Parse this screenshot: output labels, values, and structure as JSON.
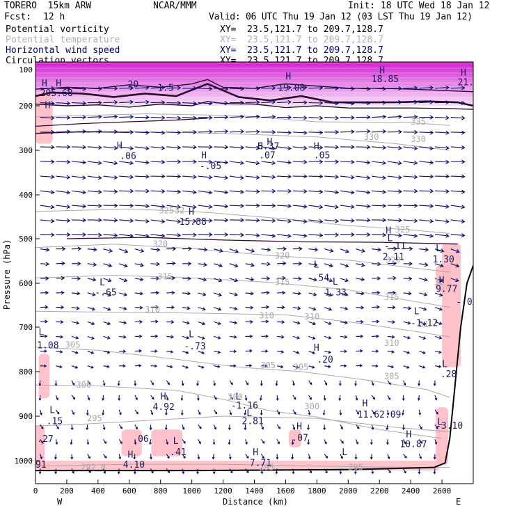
{
  "header": {
    "model": "TORERO  15km ARW",
    "center": "NCAR/MMM",
    "init": "Init: 18 UTC Wed 18 Jan 12",
    "fcst_label": "Fcst:",
    "fcst_value": "12 h",
    "valid": "Valid: 06 UTC Thu 19 Jan 12 (03 LST Thu 19 Jan 12)"
  },
  "fields": [
    {
      "name": "Potential vorticity",
      "xy": "XY=  23.5,121.7 to 209.7,128.7",
      "color": "#000000"
    },
    {
      "name": "Potential temperature",
      "xy": "XY=  23.5,121.7 to 209.7,128.7",
      "color": "#b0b0b0"
    },
    {
      "name": "Horizontal wind speed",
      "xy": "XY=  23.5,121.7 to 209.7,128.7",
      "color": "#000080"
    },
    {
      "name": "Circulation vectors",
      "xy": "XY=  23.5,121.7 to 209.7,128.7",
      "color": "#000000"
    }
  ],
  "colors": {
    "pv_fill": "#ffb6c1",
    "stratosphere_fill": "#e040e0",
    "vector": "#0b0b6e",
    "isentrope": "#a9a9a9",
    "wind_contour": "#3a0a3a",
    "terrain": "#000000"
  },
  "chart_data": {
    "type": "vertical cross-section",
    "xlabel": "Distance (km)",
    "ylabel": "Pressure (hPa)",
    "x_ticks": [
      0,
      200,
      400,
      600,
      800,
      1000,
      1200,
      1400,
      1600,
      1800,
      2000,
      2200,
      2400,
      2600
    ],
    "y_ticks": [
      200,
      300,
      400,
      500,
      600,
      700,
      800,
      900,
      1000
    ],
    "y_top_label": "100",
    "xlim": [
      0,
      2800
    ],
    "ylim_hpa": [
      1025,
      100
    ],
    "end_labels": {
      "west": "W",
      "east": "E"
    },
    "isentropes": [
      {
        "theta": 292.8,
        "points": [
          [
            0,
            1012
          ],
          [
            600,
            1008
          ],
          [
            1200,
            1008
          ],
          [
            1800,
            1012
          ],
          [
            2400,
            1015
          ],
          [
            2650,
            1015
          ]
        ]
      },
      {
        "theta": 295,
        "points": [
          [
            0,
            922
          ],
          [
            300,
            918
          ],
          [
            700,
            910
          ],
          [
            1200,
            900
          ],
          [
            1800,
            905
          ],
          [
            2300,
            925
          ],
          [
            2650,
            935
          ]
        ]
      },
      {
        "theta": 300,
        "points": [
          [
            0,
            830
          ],
          [
            400,
            832
          ],
          [
            900,
            842
          ],
          [
            1200,
            862
          ],
          [
            1500,
            888
          ],
          [
            1800,
            902
          ],
          [
            2200,
            930
          ],
          [
            2600,
            950
          ]
        ]
      },
      {
        "theta": 305,
        "points": [
          [
            0,
            745
          ],
          [
            400,
            752
          ],
          [
            900,
            772
          ],
          [
            1300,
            790
          ],
          [
            1700,
            800
          ],
          [
            2100,
            818
          ],
          [
            2500,
            840
          ],
          [
            2650,
            858
          ]
        ]
      },
      {
        "theta": 310,
        "points": [
          [
            0,
            664
          ],
          [
            500,
            666
          ],
          [
            1000,
            668
          ],
          [
            1600,
            672
          ],
          [
            2000,
            688
          ],
          [
            2400,
            708
          ],
          [
            2650,
            722
          ]
        ]
      },
      {
        "theta": 315,
        "points": [
          [
            0,
            588
          ],
          [
            500,
            582
          ],
          [
            1000,
            588
          ],
          [
            1500,
            598
          ],
          [
            2000,
            615
          ],
          [
            2400,
            640
          ],
          [
            2650,
            655
          ]
        ]
      },
      {
        "theta": 320,
        "points": [
          [
            0,
            520
          ],
          [
            500,
            512
          ],
          [
            1000,
            522
          ],
          [
            1500,
            538
          ],
          [
            2000,
            548
          ],
          [
            2400,
            565
          ],
          [
            2650,
            575
          ]
        ]
      },
      {
        "theta": 325,
        "points": [
          [
            0,
            438
          ],
          [
            600,
            432
          ],
          [
            1100,
            440
          ],
          [
            1600,
            455
          ],
          [
            2000,
            470
          ],
          [
            2400,
            480
          ],
          [
            2650,
            488
          ]
        ]
      },
      {
        "theta": 330,
        "points": [
          [
            0,
            262
          ],
          [
            600,
            258
          ],
          [
            1200,
            262
          ],
          [
            1800,
            270
          ],
          [
            2300,
            285
          ],
          [
            2650,
            300
          ]
        ]
      },
      {
        "theta": 335,
        "points": [
          [
            0,
            225
          ],
          [
            700,
            218
          ],
          [
            1300,
            222
          ],
          [
            1800,
            236
          ],
          [
            2400,
            238
          ],
          [
            2650,
            244
          ]
        ]
      }
    ],
    "isentrope_labels": [
      {
        "text": "292.8",
        "x": 290,
        "p": 1015
      },
      {
        "text": "295",
        "x": 1430,
        "p": 1015
      },
      {
        "text": "295",
        "x": 2000,
        "p": 1015
      },
      {
        "text": "295",
        "x": 330,
        "p": 905
      },
      {
        "text": "300",
        "x": 260,
        "p": 830
      },
      {
        "text": "300",
        "x": 1230,
        "p": 857
      },
      {
        "text": "300",
        "x": 1720,
        "p": 878
      },
      {
        "text": "305",
        "x": 190,
        "p": 740
      },
      {
        "text": "305",
        "x": 1440,
        "p": 786
      },
      {
        "text": "305",
        "x": 1650,
        "p": 790
      },
      {
        "text": "305",
        "x": 2230,
        "p": 810
      },
      {
        "text": "310",
        "x": 700,
        "p": 660
      },
      {
        "text": "310",
        "x": 1430,
        "p": 674
      },
      {
        "text": "310",
        "x": 1720,
        "p": 676
      },
      {
        "text": "310",
        "x": 2230,
        "p": 736
      },
      {
        "text": "315",
        "x": 780,
        "p": 585
      },
      {
        "text": "315",
        "x": 1530,
        "p": 598
      },
      {
        "text": "315",
        "x": 2230,
        "p": 632
      },
      {
        "text": "320",
        "x": 750,
        "p": 512
      },
      {
        "text": "320",
        "x": 1530,
        "p": 538
      },
      {
        "text": "320",
        "x": 2240,
        "p": 548
      },
      {
        "text": "325",
        "x": 790,
        "p": 436
      },
      {
        "text": "325",
        "x": 2300,
        "p": 479
      },
      {
        "text": "330",
        "x": 2100,
        "p": 270
      },
      {
        "text": "330",
        "x": 2400,
        "p": 275
      },
      {
        "text": "335",
        "x": 2400,
        "p": 236
      },
      {
        "text": "32",
        "x": 890,
        "p": 436
      },
      {
        "text": "31",
        "x": 2450,
        "p": 694
      },
      {
        "text": "32",
        "x": 2550,
        "p": 598
      }
    ],
    "annotations": [
      {
        "text": "H",
        "x": 40,
        "p": 148
      },
      {
        "text": "H",
        "x": 130,
        "p": 148
      },
      {
        "text": "205.68",
        "x": 30,
        "p": 170
      },
      {
        "text": "20",
        "x": 590,
        "p": 150
      },
      {
        "text": "1.5",
        "x": 780,
        "p": 158
      },
      {
        "text": "H",
        "x": 1600,
        "p": 132
      },
      {
        "text": "19.08",
        "x": 1550,
        "p": 158
      },
      {
        "text": "H",
        "x": 2200,
        "p": 118
      },
      {
        "text": "18.85",
        "x": 2150,
        "p": 138
      },
      {
        "text": "H",
        "x": 2720,
        "p": 123
      },
      {
        "text": "21.",
        "x": 2700,
        "p": 145
      },
      {
        "text": "H",
        "x": 60,
        "p": 198
      },
      {
        "text": "H",
        "x": 1480,
        "p": 280
      },
      {
        "text": "6.37",
        "x": 1420,
        "p": 290
      },
      {
        "text": "H",
        "x": 520,
        "p": 288
      },
      {
        "text": ".06",
        "x": 540,
        "p": 312
      },
      {
        "text": "H",
        "x": 1060,
        "p": 310
      },
      {
        "text": "-.05",
        "x": 1050,
        "p": 334
      },
      {
        "text": "H",
        "x": 1420,
        "p": 290
      },
      {
        "text": ".07",
        "x": 1430,
        "p": 310
      },
      {
        "text": "H",
        "x": 1780,
        "p": 290
      },
      {
        "text": ".05",
        "x": 1780,
        "p": 310
      },
      {
        "text": "H",
        "x": 980,
        "p": 437
      },
      {
        "text": "15.88",
        "x": 920,
        "p": 460
      },
      {
        "text": "H",
        "x": 2240,
        "p": 480
      },
      {
        "text": "L",
        "x": 2250,
        "p": 498
      },
      {
        "text": "-.11",
        "x": 2230,
        "p": 516
      },
      {
        "text": "2.11",
        "x": 2220,
        "p": 540
      },
      {
        "text": "L",
        "x": 2560,
        "p": 520
      },
      {
        "text": "1.30",
        "x": 2540,
        "p": 545
      },
      {
        "text": "L",
        "x": 1780,
        "p": 557
      },
      {
        "text": "-.54",
        "x": 1740,
        "p": 587
      },
      {
        "text": "L",
        "x": 1900,
        "p": 595
      },
      {
        "text": "1.33",
        "x": 1850,
        "p": 620
      },
      {
        "text": "H",
        "x": 2580,
        "p": 592
      },
      {
        "text": "9.77",
        "x": 2560,
        "p": 612
      },
      {
        "text": "-.0",
        "x": 2690,
        "p": 641
      },
      {
        "text": "L",
        "x": 410,
        "p": 597
      },
      {
        "text": "-.65",
        "x": 380,
        "p": 620
      },
      {
        "text": "L",
        "x": 2420,
        "p": 663
      },
      {
        "text": "-1.12",
        "x": 2400,
        "p": 690
      },
      {
        "text": "L",
        "x": 20,
        "p": 710
      },
      {
        "text": "1.08",
        "x": 10,
        "p": 740
      },
      {
        "text": "L",
        "x": 980,
        "p": 715
      },
      {
        "text": "-.73",
        "x": 950,
        "p": 742
      },
      {
        "text": "H",
        "x": 1780,
        "p": 745
      },
      {
        "text": ".20",
        "x": 1800,
        "p": 772
      },
      {
        "text": "L",
        "x": 2600,
        "p": 782
      },
      {
        "text": ".28",
        "x": 2590,
        "p": 805
      },
      {
        "text": "H",
        "x": 800,
        "p": 855
      },
      {
        "text": "4.92",
        "x": 750,
        "p": 878
      },
      {
        "text": "L",
        "x": 1280,
        "p": 855
      },
      {
        "text": "-1.16",
        "x": 1250,
        "p": 875
      },
      {
        "text": "H",
        "x": 2090,
        "p": 870
      },
      {
        "text": "11.62.09",
        "x": 2060,
        "p": 895
      },
      {
        "text": "L",
        "x": 90,
        "p": 885
      },
      {
        "text": "L",
        "x": 1350,
        "p": 892
      },
      {
        "text": ".15",
        "x": 70,
        "p": 910
      },
      {
        "text": "2.81",
        "x": 1320,
        "p": 910
      },
      {
        "text": "L",
        "x": 2570,
        "p": 912
      },
      {
        "text": "-3.10",
        "x": 2560,
        "p": 920
      },
      {
        "text": "H",
        "x": 1670,
        "p": 922
      },
      {
        "text": ".07",
        "x": 1640,
        "p": 948
      },
      {
        "text": "H",
        "x": 2370,
        "p": 940
      },
      {
        "text": "10.87",
        "x": 2330,
        "p": 962
      },
      {
        "text": ".27",
        "x": 10,
        "p": 950
      },
      {
        "text": ".06",
        "x": 620,
        "p": 950
      },
      {
        "text": "L",
        "x": 880,
        "p": 955
      },
      {
        "text": ".41",
        "x": 860,
        "p": 980
      },
      {
        "text": "H",
        "x": 590,
        "p": 985
      },
      {
        "text": "H",
        "x": 1390,
        "p": 980
      },
      {
        "text": "4.10",
        "x": 560,
        "p": 1008
      },
      {
        "text": "7.71",
        "x": 1370,
        "p": 1004
      },
      {
        "text": "91",
        "x": 0,
        "p": 1008
      },
      {
        "text": "L",
        "x": 1960,
        "p": 980
      }
    ],
    "tropopause_pv": [
      [
        0,
        178
      ],
      [
        100,
        170
      ],
      [
        300,
        172
      ],
      [
        500,
        180
      ],
      [
        700,
        172
      ],
      [
        900,
        178
      ],
      [
        1100,
        150
      ],
      [
        1300,
        180
      ],
      [
        1500,
        188
      ],
      [
        1700,
        178
      ],
      [
        1900,
        192
      ],
      [
        2100,
        192
      ],
      [
        2300,
        192
      ],
      [
        2500,
        190
      ],
      [
        2700,
        192
      ],
      [
        2800,
        200
      ]
    ],
    "upper_pv_contours": [
      [
        [
          0,
          162
        ],
        [
          200,
          158
        ],
        [
          400,
          160
        ],
        [
          600,
          152
        ],
        [
          800,
          158
        ],
        [
          1000,
          150
        ],
        [
          1100,
          140
        ],
        [
          1200,
          158
        ],
        [
          1400,
          160
        ],
        [
          1600,
          150
        ],
        [
          1800,
          155
        ],
        [
          2000,
          160
        ],
        [
          2200,
          160
        ],
        [
          2400,
          162
        ],
        [
          2600,
          165
        ],
        [
          2800,
          168
        ]
      ],
      [
        [
          0,
          196
        ],
        [
          200,
          200
        ],
        [
          400,
          198
        ],
        [
          600,
          203
        ],
        [
          800,
          196
        ],
        [
          1000,
          200
        ],
        [
          1100,
          190
        ],
        [
          1200,
          195
        ],
        [
          1400,
          196
        ],
        [
          1600,
          204
        ],
        [
          1800,
          200
        ],
        [
          2000,
          205
        ],
        [
          2200,
          205
        ],
        [
          2400,
          205
        ],
        [
          2600,
          206
        ],
        [
          2800,
          208
        ]
      ]
    ],
    "wind_contours": [
      [
        [
          200,
          500
        ],
        [
          700,
          497
        ],
        [
          1200,
          503
        ],
        [
          1700,
          507
        ],
        [
          2200,
          508
        ],
        [
          2700,
          512
        ]
      ],
      [
        [
          0,
          246
        ],
        [
          300,
          240
        ],
        [
          600,
          236
        ],
        [
          900,
          232
        ],
        [
          1100,
          228
        ]
      ],
      [
        [
          0,
          262
        ],
        [
          300,
          258
        ],
        [
          600,
          260
        ]
      ]
    ],
    "terrain": [
      [
        0,
        1022
      ],
      [
        1000,
        1022
      ],
      [
        2000,
        1020
      ],
      [
        2550,
        1015
      ],
      [
        2620,
        1005
      ],
      [
        2650,
        950
      ],
      [
        2720,
        700
      ],
      [
        2760,
        600
      ],
      [
        2800,
        560
      ]
    ],
    "pv_patches": [
      {
        "x0": 0,
        "x1": 110,
        "p0": 172,
        "p1": 285
      },
      {
        "x0": 20,
        "x1": 90,
        "p0": 760,
        "p1": 860
      },
      {
        "x0": 0,
        "x1": 60,
        "p0": 920,
        "p1": 1020
      },
      {
        "x0": 550,
        "x1": 680,
        "p0": 930,
        "p1": 990
      },
      {
        "x0": 740,
        "x1": 940,
        "p0": 930,
        "p1": 990
      },
      {
        "x0": 1620,
        "x1": 1700,
        "p0": 930,
        "p1": 970
      },
      {
        "x0": 2560,
        "x1": 2660,
        "p0": 560,
        "p1": 620
      },
      {
        "x0": 2600,
        "x1": 2720,
        "p0": 510,
        "p1": 790
      },
      {
        "x0": 2560,
        "x1": 2640,
        "p0": 880,
        "p1": 1010
      }
    ],
    "bottom_pv_band": {
      "x0": 20,
      "x1": 2580,
      "p0": 1000,
      "p1": 1022
    },
    "strat_top": {
      "p0": 100,
      "p1": 200
    }
  }
}
